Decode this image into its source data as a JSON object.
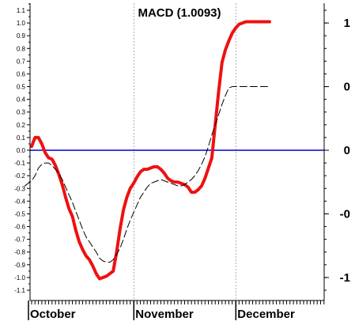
{
  "chart_data": {
    "type": "line",
    "title": "MACD (1.0093)",
    "xlabel": "",
    "ylabel": "",
    "ylim": [
      -1.15,
      1.15
    ],
    "left_ticks": [
      "1.1",
      "1.0",
      "0.9",
      "0.8",
      "0.7",
      "0.6",
      "0.5",
      "0.4",
      "0.3",
      "0.2",
      "0.1",
      "0.0",
      "-0.1",
      "-0.2",
      "-0.3",
      "-0.4",
      "-0.5",
      "-0.6",
      "-0.7",
      "-0.8",
      "-0.9",
      "-1.0",
      "-1.1"
    ],
    "left_tick_values": [
      1.1,
      1.0,
      0.9,
      0.8,
      0.7,
      0.6,
      0.5,
      0.4,
      0.3,
      0.2,
      0.1,
      0.0,
      -0.1,
      -0.2,
      -0.3,
      -0.4,
      -0.5,
      -0.6,
      -0.7,
      -0.8,
      -0.9,
      -1.0,
      -1.1
    ],
    "right_ticks": [
      "1",
      "0",
      "0",
      "-0",
      "-1"
    ],
    "right_tick_values": [
      1.0,
      0.5,
      0.0,
      -0.5,
      -1.0
    ],
    "months": [
      {
        "label": "October",
        "start_day": 0
      },
      {
        "label": "November",
        "start_day": 31
      },
      {
        "label": "December",
        "start_day": 61
      }
    ],
    "x_range": [
      0,
      89
    ],
    "zero_line": 0,
    "colors": {
      "macd": "#ee1111",
      "signal": "#000000",
      "zero": "#0000cc",
      "grid": "#aaaaaa"
    },
    "series": [
      {
        "key": "macd",
        "style": "solid",
        "x": [
          0,
          1,
          2,
          3,
          4,
          5,
          6,
          7,
          8,
          9,
          10,
          11,
          12,
          13,
          14,
          15,
          16,
          17,
          18,
          19,
          20,
          21,
          22,
          23,
          24,
          25,
          26,
          27,
          28,
          29,
          30,
          31,
          32,
          33,
          34,
          35,
          36,
          37,
          38,
          39,
          40,
          41,
          42,
          43,
          44,
          45,
          46,
          47,
          48,
          49,
          50,
          51,
          52,
          53,
          54,
          55,
          56,
          57,
          58,
          59,
          60,
          61,
          62,
          63,
          64,
          65,
          66,
          67,
          68,
          69,
          70
        ],
        "y": [
          0.03,
          0.1,
          0.1,
          0.05,
          -0.02,
          -0.06,
          -0.07,
          -0.12,
          -0.19,
          -0.27,
          -0.37,
          -0.46,
          -0.52,
          -0.63,
          -0.72,
          -0.78,
          -0.83,
          -0.86,
          -0.91,
          -0.97,
          -1.01,
          -1.0,
          -0.99,
          -0.97,
          -0.95,
          -0.8,
          -0.62,
          -0.47,
          -0.37,
          -0.3,
          -0.26,
          -0.21,
          -0.17,
          -0.15,
          -0.15,
          -0.14,
          -0.13,
          -0.13,
          -0.15,
          -0.18,
          -0.22,
          -0.24,
          -0.25,
          -0.25,
          -0.26,
          -0.27,
          -0.29,
          -0.33,
          -0.33,
          -0.31,
          -0.28,
          -0.22,
          -0.14,
          -0.06,
          0.2,
          0.46,
          0.69,
          0.79,
          0.86,
          0.92,
          0.96,
          0.99,
          1.0,
          1.01,
          1.01,
          1.01,
          1.01,
          1.01,
          1.01,
          1.01,
          1.01
        ]
      },
      {
        "key": "signal",
        "style": "dashed",
        "x": [
          -2,
          0,
          1,
          2,
          3,
          4,
          5,
          6,
          7,
          8,
          9,
          10,
          11,
          12,
          13,
          14,
          15,
          16,
          17,
          18,
          19,
          20,
          21,
          22,
          23,
          24,
          25,
          26,
          27,
          28,
          29,
          30,
          31,
          32,
          33,
          34,
          35,
          36,
          37,
          38,
          39,
          40,
          41,
          42,
          43,
          44,
          45,
          46,
          47,
          48,
          49,
          50,
          51,
          52,
          53,
          54,
          55,
          56,
          57,
          58,
          59,
          60,
          61,
          62,
          63,
          64,
          65,
          66,
          67,
          68,
          69,
          70
        ],
        "y": [
          -0.28,
          -0.24,
          -0.2,
          -0.14,
          -0.11,
          -0.1,
          -0.1,
          -0.12,
          -0.15,
          -0.18,
          -0.23,
          -0.29,
          -0.35,
          -0.41,
          -0.48,
          -0.55,
          -0.62,
          -0.68,
          -0.72,
          -0.76,
          -0.8,
          -0.85,
          -0.87,
          -0.88,
          -0.88,
          -0.86,
          -0.82,
          -0.77,
          -0.7,
          -0.62,
          -0.55,
          -0.49,
          -0.43,
          -0.37,
          -0.33,
          -0.29,
          -0.26,
          -0.25,
          -0.24,
          -0.23,
          -0.24,
          -0.25,
          -0.26,
          -0.27,
          -0.28,
          -0.28,
          -0.27,
          -0.25,
          -0.23,
          -0.2,
          -0.16,
          -0.11,
          -0.05,
          0.03,
          0.12,
          0.2,
          0.28,
          0.36,
          0.43,
          0.49,
          0.5,
          0.5,
          0.5,
          0.5,
          0.5,
          0.5,
          0.5,
          0.5,
          0.5,
          0.5,
          0.5,
          0.5
        ]
      }
    ]
  }
}
